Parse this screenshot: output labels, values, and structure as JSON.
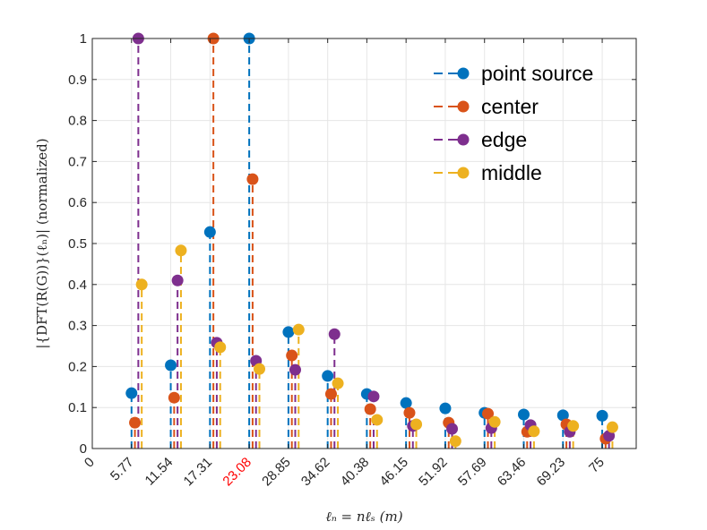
{
  "chart_data": {
    "type": "stem",
    "title": "",
    "xlabel": "ℓₙ = nℓₛ (m)",
    "ylabel": "|{DFT(R(G))}(ℓₙ)| (normalized)",
    "xlim": [
      0,
      80
    ],
    "ylim": [
      0,
      1
    ],
    "grid": true,
    "legend_position": "top-right",
    "x_ticks": [
      "0",
      "5.77",
      "11.54",
      "17.31",
      "23.08",
      "28.85",
      "34.62",
      "40.38",
      "46.15",
      "51.92",
      "57.69",
      "63.46",
      "69.23",
      "75"
    ],
    "x_tick_values": [
      0,
      5.77,
      11.54,
      17.31,
      23.08,
      28.85,
      34.62,
      40.38,
      46.15,
      51.92,
      57.69,
      63.46,
      69.23,
      75
    ],
    "highlighted_tick": "23.08",
    "highlight_color": "#ff0000",
    "y_ticks": [
      "0",
      "0.1",
      "0.2",
      "0.3",
      "0.4",
      "0.5",
      "0.6",
      "0.7",
      "0.8",
      "0.9",
      "1"
    ],
    "y_tick_values": [
      0,
      0.1,
      0.2,
      0.3,
      0.4,
      0.5,
      0.6,
      0.7,
      0.8,
      0.9,
      1
    ],
    "x": [
      5.77,
      11.54,
      17.31,
      23.08,
      28.85,
      34.62,
      40.38,
      46.15,
      51.92,
      57.69,
      63.46,
      69.23,
      75
    ],
    "series": [
      {
        "name": "point source",
        "color": "#0072bd",
        "x_offset": 0,
        "values": [
          0.135,
          0.203,
          0.528,
          1.0,
          0.284,
          0.177,
          0.133,
          0.111,
          0.098,
          0.087,
          0.083,
          0.081,
          0.08
        ]
      },
      {
        "name": "center",
        "color": "#d95319",
        "x_offset": 0.5,
        "values": [
          0.063,
          0.124,
          1.0,
          0.657,
          0.227,
          0.133,
          0.096,
          0.087,
          0.063,
          0.085,
          0.041,
          0.059,
          0.024
        ]
      },
      {
        "name": "edge",
        "color": "#7e2f8e",
        "x_offset": 1.0,
        "values": [
          1.0,
          0.41,
          0.258,
          0.214,
          0.192,
          0.279,
          0.127,
          0.055,
          0.048,
          0.05,
          0.057,
          0.041,
          0.031
        ]
      },
      {
        "name": "middle",
        "color": "#edb120",
        "x_offset": 1.5,
        "values": [
          0.4,
          0.483,
          0.247,
          0.194,
          0.29,
          0.159,
          0.07,
          0.059,
          0.018,
          0.065,
          0.042,
          0.055,
          0.052
        ]
      }
    ]
  }
}
